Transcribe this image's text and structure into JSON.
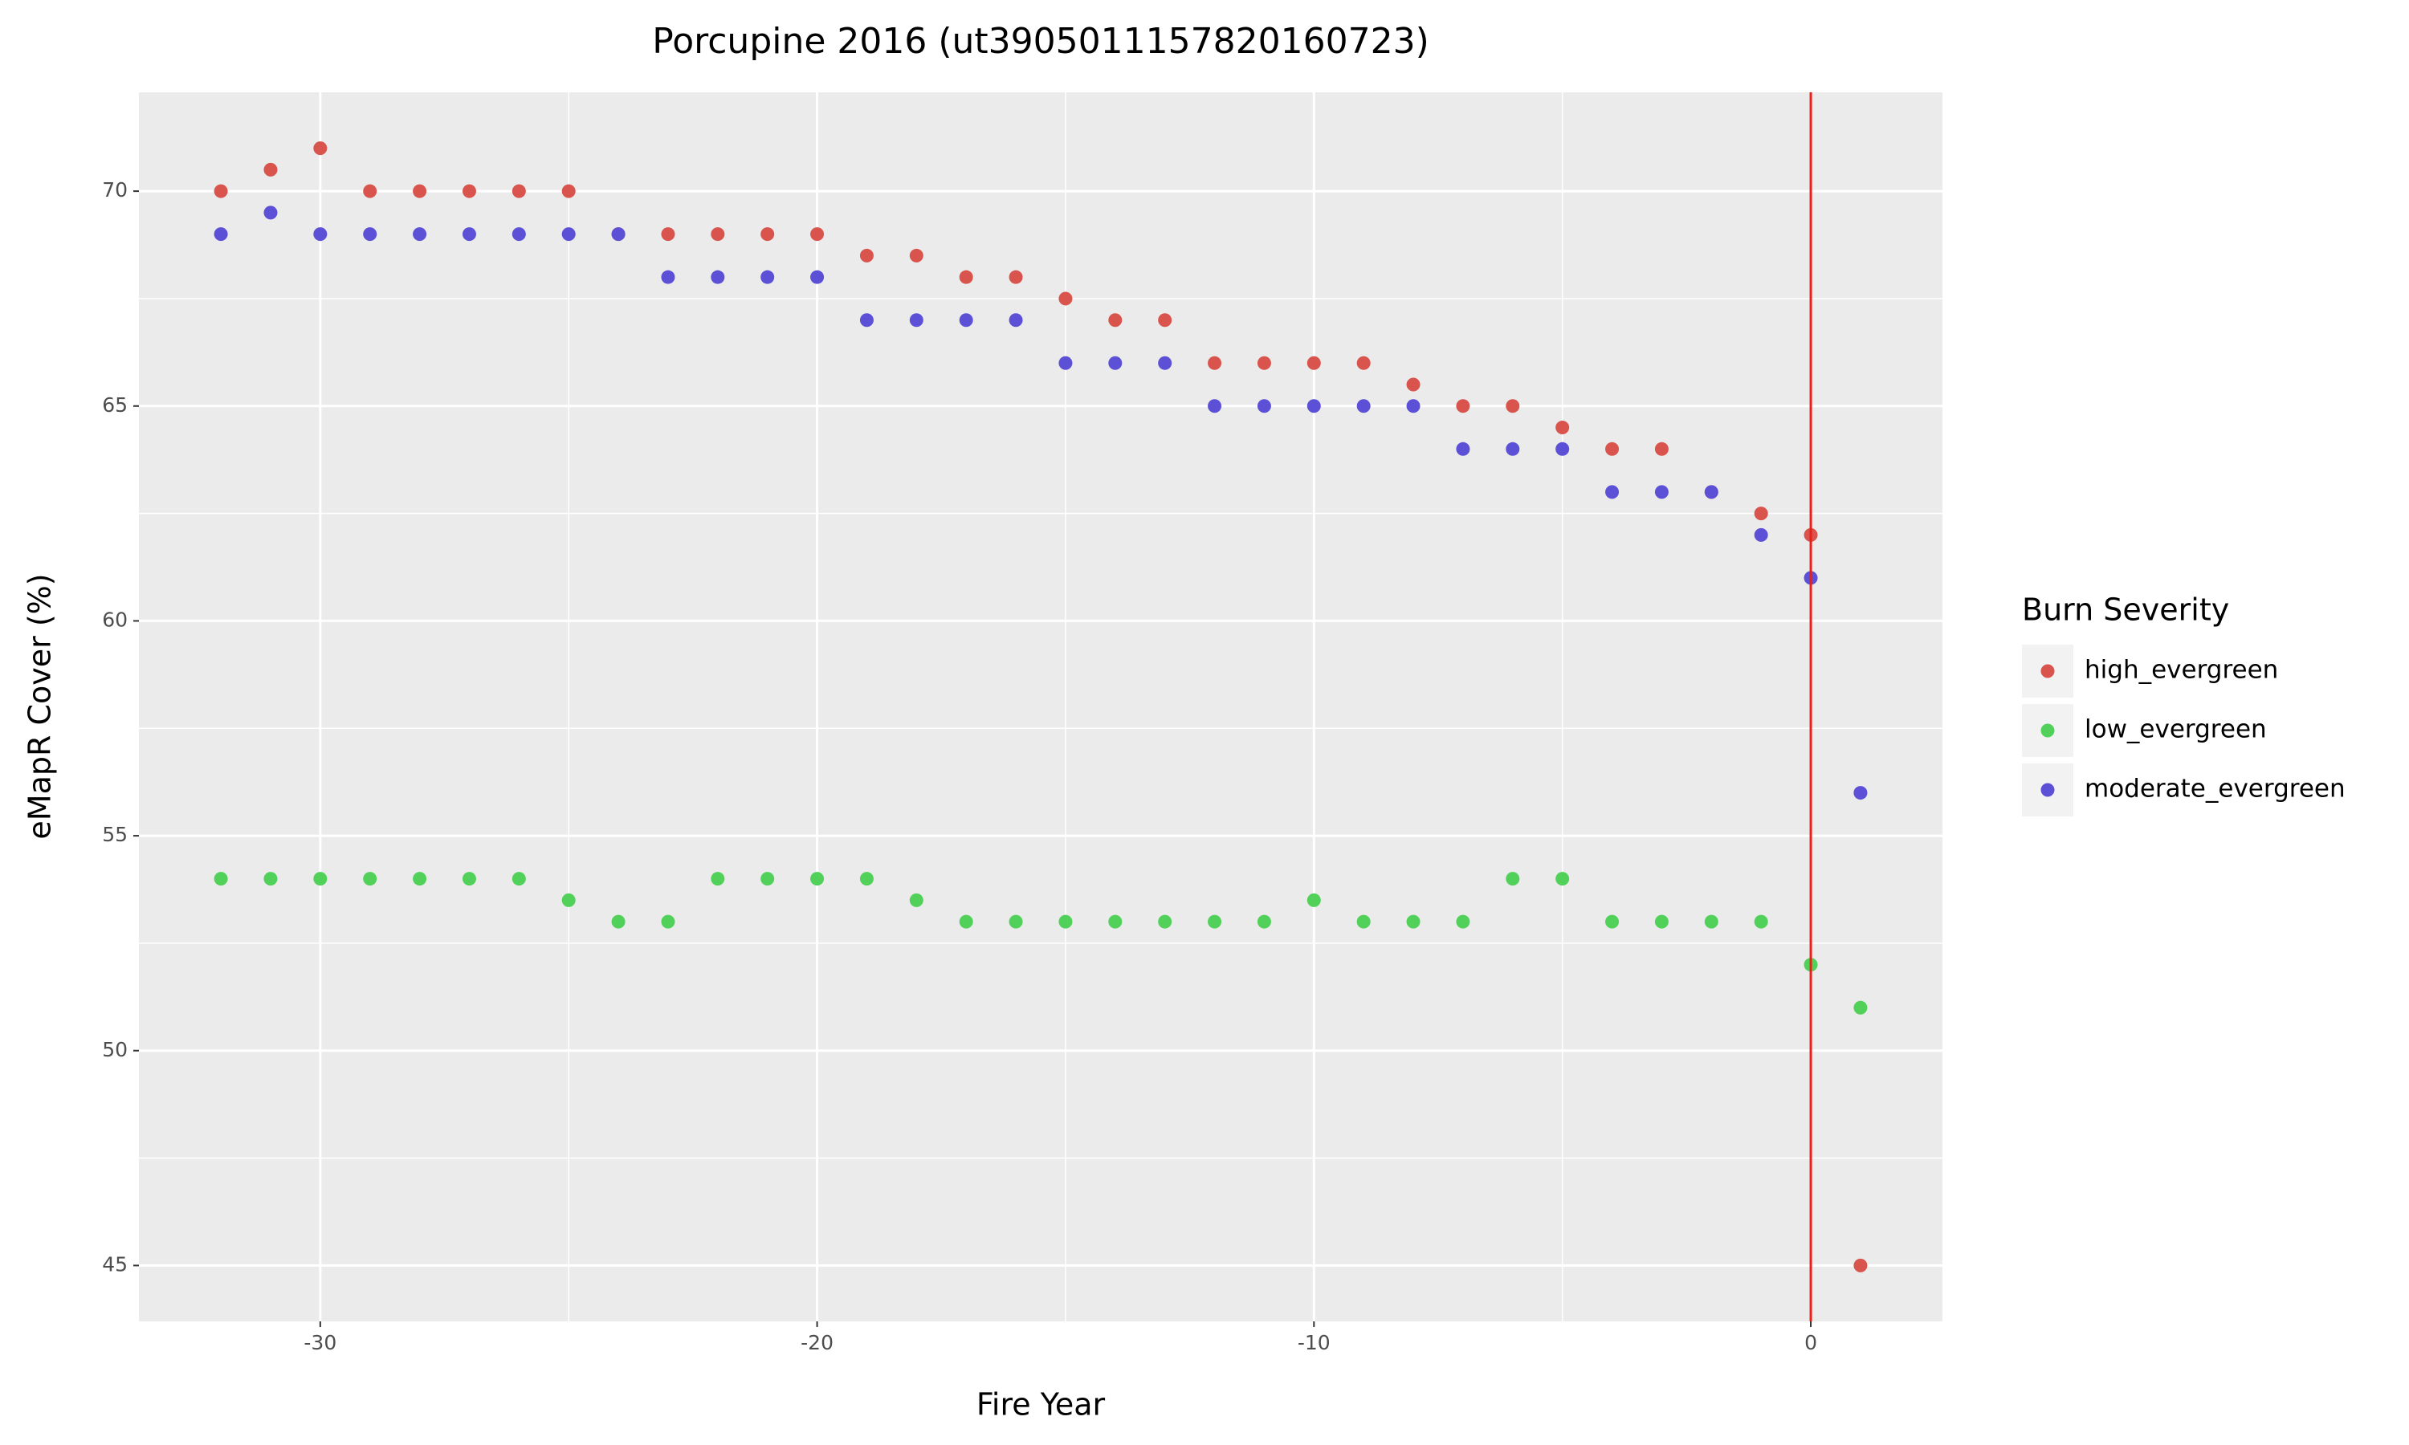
{
  "chart_data": {
    "type": "scatter",
    "title": "Porcupine 2016 (ut3905011157820160723)",
    "x_label": "Fire Year",
    "y_label": "eMapR Cover (%)",
    "legend_title": "Burn Severity",
    "legend_position": "right",
    "x": [
      -32,
      -31,
      -30,
      -29,
      -28,
      -27,
      -26,
      -25,
      -24,
      -23,
      -22,
      -21,
      -20,
      -19,
      -18,
      -17,
      -16,
      -15,
      -14,
      -13,
      -12,
      -11,
      -10,
      -9,
      -8,
      -7,
      -6,
      -5,
      -4,
      -3,
      -2,
      -1,
      0,
      1
    ],
    "series": [
      {
        "name": "high_evergreen",
        "color": "#d9544d",
        "values": [
          70,
          70.5,
          71,
          70,
          70,
          70,
          70,
          70,
          69,
          69,
          69,
          69,
          69,
          68.5,
          68.5,
          68,
          68,
          67.5,
          67,
          67,
          66,
          66,
          66,
          66,
          65.5,
          65,
          65,
          64.5,
          64,
          64,
          63,
          62.5,
          62,
          45
        ]
      },
      {
        "name": "low_evergreen",
        "color": "#52d15a",
        "values": [
          54,
          54,
          54,
          54,
          54,
          54,
          54,
          53.5,
          53,
          53,
          54,
          54,
          54,
          54,
          53.5,
          53,
          53,
          53,
          53,
          53,
          53,
          53,
          53.5,
          53,
          53,
          53,
          54,
          54,
          53,
          53,
          53,
          53,
          52,
          51
        ]
      },
      {
        "name": "moderate_evergreen",
        "color": "#5b50d6",
        "values": [
          69,
          69.5,
          69,
          69,
          69,
          69,
          69,
          69,
          69,
          68,
          68,
          68,
          68,
          67,
          67,
          67,
          67,
          66,
          66,
          66,
          65,
          65,
          65,
          65,
          65,
          64,
          64,
          64,
          63,
          63,
          63,
          62,
          61,
          56
        ]
      }
    ],
    "vline": 0,
    "vline_color": "#e8201a",
    "xlim": [
      -33.65,
      2.65
    ],
    "xticks": [
      -30,
      -20,
      -10,
      0
    ],
    "ylim": [
      43.7,
      72.3
    ],
    "yticks": [
      45,
      50,
      55,
      60,
      65,
      70
    ],
    "grid": true
  }
}
